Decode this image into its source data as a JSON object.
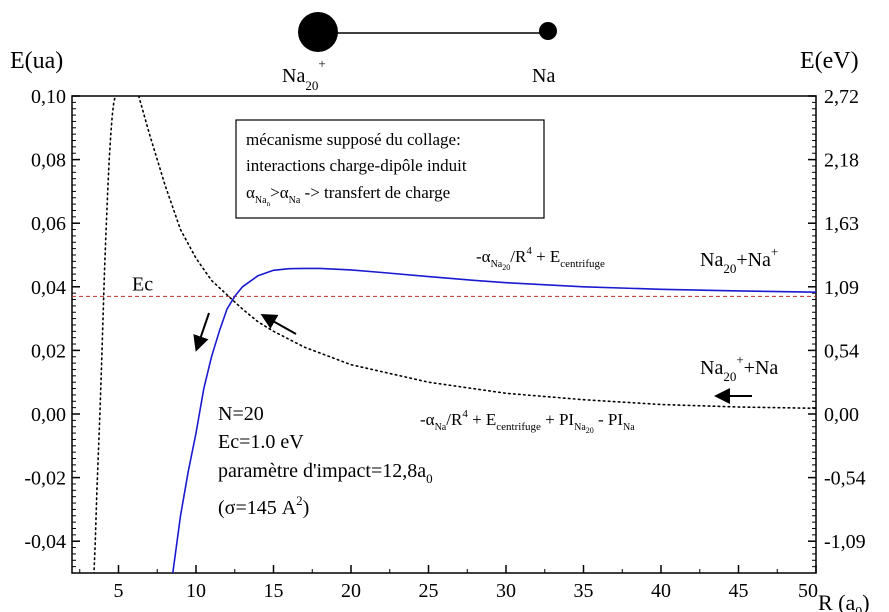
{
  "chart_data": {
    "type": "line",
    "title": "",
    "left_axis": {
      "label": "E(ua)",
      "range": [
        -0.05,
        0.1
      ],
      "ticks": [
        0.1,
        0.08,
        0.06,
        0.04,
        0.02,
        0.0,
        -0.02,
        -0.04
      ],
      "tick_labels": [
        "0,10",
        "0,08",
        "0,06",
        "0,04",
        "0,02",
        "0,00",
        "-0,02",
        "-0,04"
      ]
    },
    "right_axis": {
      "label": "E(eV)",
      "tick_labels": [
        "2,72",
        "2,18",
        "1,63",
        "1,09",
        "0,54",
        "0,00",
        "-0,54",
        "-1,09"
      ]
    },
    "x_axis": {
      "label": "R (a",
      "label_sub": "0",
      "label_end": ")",
      "range": [
        2.0,
        50.0
      ],
      "ticks": [
        5,
        10,
        15,
        20,
        25,
        30,
        35,
        40,
        45,
        50
      ],
      "tick_labels": [
        "5",
        "10",
        "15",
        "20",
        "25",
        "30",
        "35",
        "40",
        "45",
        "50"
      ]
    },
    "series": [
      {
        "style": "solid",
        "color": "#1a1ad0",
        "x": [
          8.5,
          9.0,
          9.5,
          10.0,
          10.5,
          11.0,
          11.5,
          12.0,
          12.5,
          13.0,
          14.0,
          15.0,
          16.0,
          17.0,
          18.0,
          20.0,
          22.0,
          25.0,
          28.0,
          30.0,
          35.0,
          40.0,
          45.0,
          50.0
        ],
        "y": [
          -0.05,
          -0.032,
          -0.018,
          -0.006,
          0.008,
          0.018,
          0.026,
          0.033,
          0.037,
          0.04,
          0.0435,
          0.0452,
          0.0457,
          0.0458,
          0.0458,
          0.0453,
          0.0445,
          0.0432,
          0.042,
          0.0413,
          0.04,
          0.0392,
          0.0387,
          0.0383
        ]
      },
      {
        "style": "dotted",
        "color": "#000000",
        "x": [
          6.3,
          7.0,
          8.0,
          9.0,
          10.0,
          11.0,
          12.0,
          13.0,
          14.0,
          15.0,
          17.0,
          20.0,
          25.0,
          30.0,
          35.0,
          40.0,
          45.0,
          50.0
        ],
        "y": [
          0.1,
          0.088,
          0.072,
          0.058,
          0.049,
          0.042,
          0.0375,
          0.033,
          0.029,
          0.026,
          0.021,
          0.0155,
          0.01,
          0.0065,
          0.0045,
          0.003,
          0.0022,
          0.0018
        ]
      },
      {
        "style": "dotted",
        "color": "#000000",
        "x": [
          3.4,
          3.5,
          3.6,
          3.7,
          3.8,
          3.9,
          4.0,
          4.1,
          4.2,
          4.3,
          4.4,
          4.5,
          4.6,
          4.7,
          4.8
        ],
        "y": [
          -0.052,
          -0.04,
          -0.025,
          -0.012,
          0.0,
          0.015,
          0.03,
          0.045,
          0.058,
          0.07,
          0.08,
          0.088,
          0.094,
          0.098,
          0.1
        ]
      }
    ],
    "reference_line": {
      "y": 0.037,
      "label": "Ec",
      "color": "#c0302a",
      "style": "dashed"
    },
    "legend_box": {
      "lines": [
        "mécanisme supposé du collage:",
        "interactions charge-dipôle induit"
      ],
      "line3": {
        "a1": "α",
        "a1_sub": "Na",
        "a1_subsub": "n",
        "gt": ">",
        "a2": "α",
        "a2_sub": "Na",
        "rest": " -> transfert de charge"
      }
    },
    "curve_labels": {
      "upper": {
        "prefix": "-α",
        "sub1": "Na",
        "sub2": "20",
        "mid": "/R",
        "sup": "4",
        "plus": " + E",
        "sub3": "centrifuge"
      },
      "lower": {
        "prefix": "-α",
        "sub1": "Na",
        "mid": "/R",
        "sup": "4",
        "plus": " + E",
        "sub2": "centrifuge",
        "plus2": " + PI",
        "sub3": "Na",
        "sub3b": "20",
        "minus": " - PI",
        "sub4": "Na"
      },
      "channel1": {
        "a": "Na",
        "a_sub": "20",
        "b": "+Na",
        "b_sup": "+"
      },
      "channel2": {
        "a": "Na",
        "a_sub": "20",
        "a_sup": "+",
        "b": "+Na"
      }
    },
    "params": {
      "n": "N=20",
      "ec": "Ec=1.0 eV",
      "impact": "paramètre d'impact=12,8a",
      "impact_sub": "0",
      "sigma": "(σ=145 A",
      "sigma_sup": "2",
      "sigma_end": ")"
    },
    "molecule": {
      "left_label": "Na",
      "left_sub": "20",
      "left_sup": "+",
      "right_label": "Na"
    },
    "grid": false
  }
}
